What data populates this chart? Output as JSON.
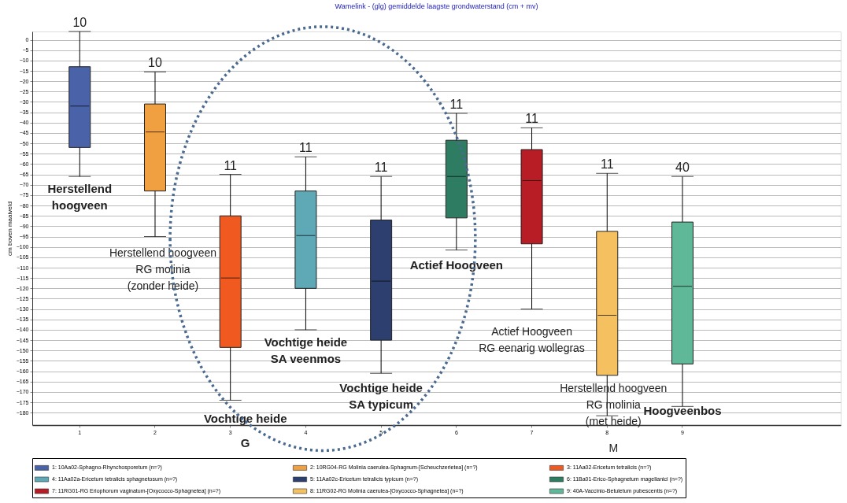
{
  "chart_data": {
    "type": "box",
    "title": "Wamelink - (glg) gemiddelde laagste grondwaterstand (cm + mv)",
    "ylabel": "cm boven maaiveld",
    "categories": [
      "1",
      "2",
      "3",
      "4",
      "5",
      "6",
      "7",
      "8",
      "9"
    ],
    "series": [
      {
        "name": "1: 10Aa02-Sphagno-Rhynchosporetum (n=?)",
        "color": "#4a63a8",
        "x": [
          "1"
        ],
        "boxes": [
          {
            "low": -66,
            "q1": -52,
            "median": -32,
            "q3": -13,
            "high": 4
          }
        ]
      },
      {
        "name": "2: 10RG04-RG Molinia caerulea-Sphagnum-[Scheuchzerietea] (n=?)",
        "color": "#f0a040",
        "x": [
          "2"
        ],
        "boxes": [
          {
            "low": -95,
            "q1": -73,
            "median": -44.5,
            "q3": -31,
            "high": -15.5
          }
        ]
      },
      {
        "name": "3: 11Aa02-Ericetum tetralicis (n=?)",
        "color": "#f05a20",
        "x": [
          "3"
        ],
        "boxes": [
          {
            "low": -174,
            "q1": -148.5,
            "median": -115,
            "q3": -85,
            "high": -65
          }
        ]
      },
      {
        "name": "4: 11Aa02a-Ericetum tetralicis sphagnetosum (n=?)",
        "color": "#5fa8b5",
        "x": [
          "4"
        ],
        "boxes": [
          {
            "low": -140,
            "q1": -120,
            "median": -94.5,
            "q3": -73,
            "high": -56.5
          }
        ]
      },
      {
        "name": "5: 11Aa02c-Ericetum tetralicis typicum (n=?)",
        "color": "#2c3f6e",
        "x": [
          "5"
        ],
        "boxes": [
          {
            "low": -161,
            "q1": -145,
            "median": -116.5,
            "q3": -87,
            "high": -66
          }
        ]
      },
      {
        "name": "6: 11Ba01-Erico-Sphagnetum magellanici (n=?)",
        "color": "#2e7d62",
        "x": [
          "6"
        ],
        "boxes": [
          {
            "low": -101.5,
            "q1": -86,
            "median": -66,
            "q3": -48.5,
            "high": -35.5
          }
        ]
      },
      {
        "name": "7: 11RG01-RG Eriophorum vaginatum-[Oxycocco-Sphagnetea] (n=?)",
        "color": "#b81c24",
        "x": [
          "7"
        ],
        "boxes": [
          {
            "low": -130,
            "q1": -98.5,
            "median": -68,
            "q3": -53,
            "high": -42.5
          }
        ]
      },
      {
        "name": "8: 11RG02-RG Molinia caerulea-[Oxycocco-Sphagnetea] (n=?)",
        "color": "#f5c060",
        "x": [
          "8"
        ],
        "boxes": [
          {
            "low": -181.5,
            "q1": -162,
            "median": -133,
            "q3": -92.5,
            "high": -64.5
          }
        ]
      },
      {
        "name": "9: 40A-Vaccinio-Betuletum pubescentis (n=?)",
        "color": "#5fb898",
        "x": [
          "9"
        ],
        "boxes": [
          {
            "low": -177,
            "q1": -156.5,
            "median": -119,
            "q3": -88,
            "high": -66
          }
        ]
      }
    ],
    "ylim": [
      -186,
      4
    ],
    "yticks": [
      0,
      -5,
      -10,
      -15,
      -20,
      -25,
      -30,
      -35,
      -40,
      -45,
      -50,
      -55,
      -60,
      -65,
      -70,
      -75,
      -80,
      -85,
      -90,
      -95,
      -100,
      -105,
      -110,
      -115,
      -120,
      -125,
      -130,
      -135,
      -140,
      -145,
      -150,
      -155,
      -160,
      -165,
      -170,
      -175,
      -180
    ],
    "grid": "y",
    "legend": "bottom",
    "annotations": [
      "10",
      "10",
      "11",
      "11",
      "11",
      "11",
      "11",
      "11",
      "40",
      "Herstellend\nhoogveen",
      "Herstellend hoogveen\nRG molinia\n(zonder heide)",
      "Vochtige heide\nG",
      "Vochtige heide\nSA veenmos",
      "Vochtige heide\nSA typicum",
      "Actief Hoogveen",
      "Actief Hoogveen\nRG eenarig wollegras",
      "Herstellend hoogveen\nRG molinia\n(met heide)\nM",
      "Hoogveenbos"
    ]
  }
}
